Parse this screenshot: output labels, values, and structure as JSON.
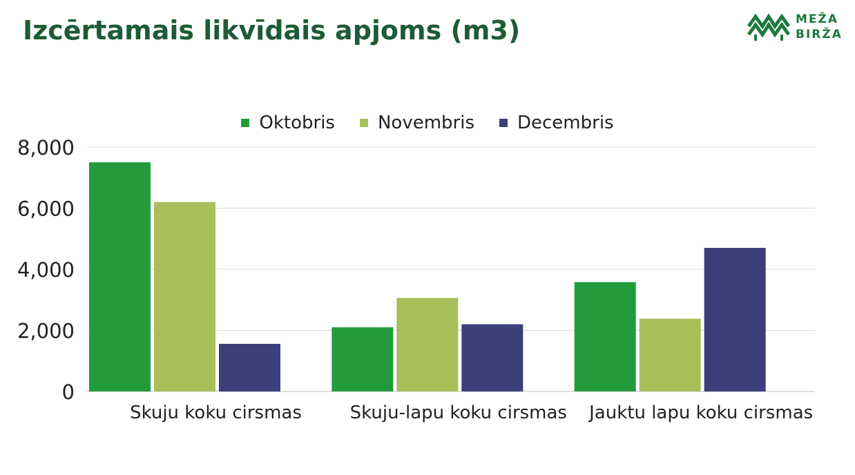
{
  "chart_data": {
    "type": "bar",
    "title": "Izcērtamais likvīdais apjoms (m3)",
    "categories": [
      "Skuju koku cirsmas",
      "Skuju-lapu koku cirsmas",
      "Jauktu lapu koku cirsmas"
    ],
    "series": [
      {
        "name": "Oktobris",
        "color": "#239b3c",
        "values": [
          7500,
          2100,
          3580
        ]
      },
      {
        "name": "Novembris",
        "color": "#a8bf5a",
        "values": [
          6200,
          3060,
          2380
        ]
      },
      {
        "name": "Decembris",
        "color": "#3b3f7a",
        "values": [
          1560,
          2200,
          4700
        ]
      }
    ],
    "ylim": [
      0,
      8000
    ],
    "yticks": [
      "0",
      "2,000",
      "4,000",
      "6,000",
      "8,000"
    ],
    "ytick_values": [
      0,
      2000,
      4000,
      6000,
      8000
    ],
    "grid": true,
    "legend_position": "top-center"
  },
  "logo": {
    "line1": "MEŽA",
    "line2": "BIRŽA"
  }
}
